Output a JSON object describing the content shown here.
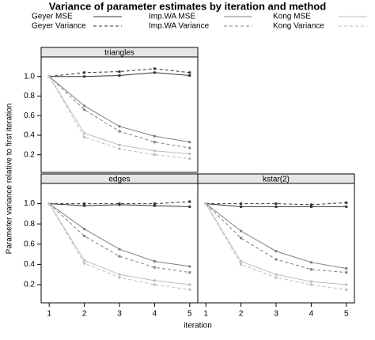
{
  "title": "Variance of parameter estimates by iteration and method",
  "x_label": "iteration",
  "y_label": "Parameter variance relative to first iteration",
  "chart_data": [
    {
      "type": "line",
      "title": "triangles",
      "x": [
        1,
        2,
        3,
        4,
        5
      ],
      "xlim": [
        0.77,
        5.23
      ],
      "ylim": [
        0.02,
        1.2
      ],
      "yticks": [
        0.2,
        0.4,
        0.6,
        0.8,
        {
          "value": 1,
          "label": "1.0"
        }
      ],
      "series": [
        {
          "name": "Geyer MSE",
          "color": "#333333",
          "dashed": false,
          "values": [
            1,
            1.0,
            1.01,
            1.04,
            1.01
          ]
        },
        {
          "name": "Geyer Variance",
          "color": "#333333",
          "dashed": true,
          "values": [
            1,
            1.04,
            1.05,
            1.08,
            1.04
          ]
        },
        {
          "name": "Imp.WA MSE",
          "color": "#808080",
          "dashed": false,
          "values": [
            1,
            0.7,
            0.49,
            0.39,
            0.33
          ]
        },
        {
          "name": "Imp.WA Variance",
          "color": "#808080",
          "dashed": true,
          "values": [
            1,
            0.66,
            0.44,
            0.33,
            0.27
          ]
        },
        {
          "name": "Kong MSE",
          "color": "#bdbdbd",
          "dashed": false,
          "values": [
            1,
            0.42,
            0.3,
            0.24,
            0.21
          ]
        },
        {
          "name": "Kong Variance",
          "color": "#bdbdbd",
          "dashed": true,
          "values": [
            1,
            0.38,
            0.26,
            0.2,
            0.16
          ]
        }
      ]
    },
    {
      "type": "line",
      "title": "edges",
      "x": [
        1,
        2,
        3,
        4,
        5
      ],
      "xlim": [
        0.77,
        5.23
      ],
      "ylim": [
        0.02,
        1.2
      ],
      "xticks": [
        1,
        2,
        3,
        4,
        5
      ],
      "yticks": [
        0.2,
        0.4,
        0.6,
        0.8,
        {
          "value": 1,
          "label": "1.0"
        }
      ],
      "series": [
        {
          "name": "Geyer MSE",
          "color": "#333333",
          "dashed": false,
          "values": [
            1,
            0.98,
            0.99,
            0.98,
            0.97
          ]
        },
        {
          "name": "Geyer Variance",
          "color": "#333333",
          "dashed": true,
          "values": [
            1,
            1.0,
            1.0,
            1.0,
            1.02
          ]
        },
        {
          "name": "Imp.WA MSE",
          "color": "#808080",
          "dashed": false,
          "values": [
            1,
            0.75,
            0.55,
            0.43,
            0.38
          ]
        },
        {
          "name": "Imp.WA Variance",
          "color": "#808080",
          "dashed": true,
          "values": [
            1,
            0.68,
            0.48,
            0.37,
            0.32
          ]
        },
        {
          "name": "Kong MSE",
          "color": "#bdbdbd",
          "dashed": false,
          "values": [
            1,
            0.44,
            0.3,
            0.24,
            0.2
          ]
        },
        {
          "name": "Kong Variance",
          "color": "#bdbdbd",
          "dashed": true,
          "values": [
            1,
            0.41,
            0.27,
            0.2,
            0.15
          ]
        }
      ]
    },
    {
      "type": "line",
      "title": "kstar(2)",
      "x": [
        1,
        2,
        3,
        4,
        5
      ],
      "xlim": [
        0.77,
        5.23
      ],
      "ylim": [
        0.02,
        1.2
      ],
      "xticks": [
        1,
        2,
        3,
        4,
        5
      ],
      "series": [
        {
          "name": "Geyer MSE",
          "color": "#333333",
          "dashed": false,
          "values": [
            1,
            0.97,
            0.97,
            0.97,
            0.97
          ]
        },
        {
          "name": "Geyer Variance",
          "color": "#333333",
          "dashed": true,
          "values": [
            1,
            1.0,
            1.0,
            0.99,
            1.01
          ]
        },
        {
          "name": "Imp.WA MSE",
          "color": "#808080",
          "dashed": false,
          "values": [
            1,
            0.73,
            0.53,
            0.42,
            0.36
          ]
        },
        {
          "name": "Imp.WA Variance",
          "color": "#808080",
          "dashed": true,
          "values": [
            1,
            0.66,
            0.45,
            0.35,
            0.32
          ]
        },
        {
          "name": "Kong MSE",
          "color": "#bdbdbd",
          "dashed": false,
          "values": [
            1,
            0.43,
            0.3,
            0.23,
            0.2
          ]
        },
        {
          "name": "Kong Variance",
          "color": "#bdbdbd",
          "dashed": true,
          "values": [
            1,
            0.4,
            0.27,
            0.2,
            0.15
          ]
        }
      ]
    }
  ]
}
